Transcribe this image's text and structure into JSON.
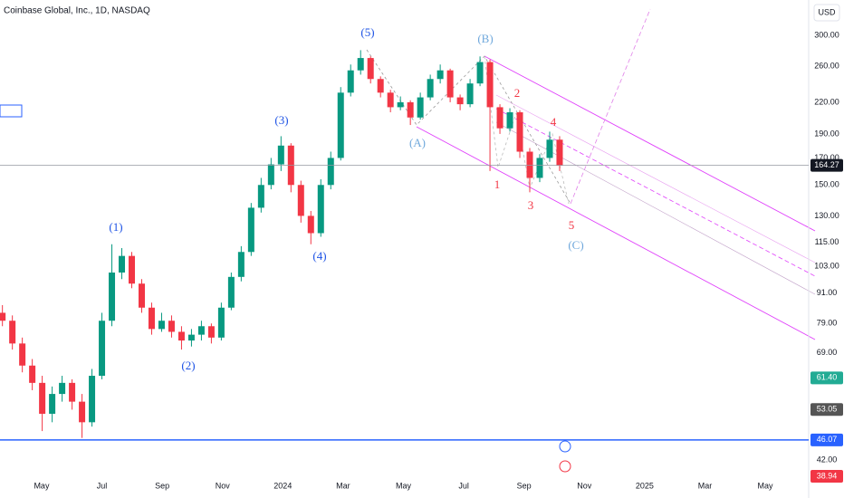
{
  "title": "Coinbase Global, Inc., 1D, NASDAQ",
  "currency_button": "USD",
  "chart_data": {
    "type": "candlestick",
    "log": true,
    "grid": false,
    "up_color": "#089981",
    "down_color": "#f23645",
    "x": [
      2.7,
      3.03,
      3.36,
      3.69,
      4.02,
      4.35,
      4.68,
      5.01,
      5.34,
      5.67,
      6.0,
      6.33,
      6.66,
      6.99,
      7.32,
      7.65,
      7.98,
      8.31,
      8.64,
      8.97,
      9.3,
      9.63,
      9.96,
      10.29,
      10.62,
      10.95,
      11.28,
      11.61,
      11.94,
      12.27,
      12.6,
      12.93,
      13.26,
      13.59,
      13.92,
      14.25,
      14.58,
      14.91,
      15.24,
      15.57,
      15.9,
      16.23,
      16.56,
      16.89,
      17.22,
      17.55,
      17.88,
      18.21,
      18.54,
      18.87,
      19.2,
      19.53,
      19.86,
      20.19,
      20.52,
      20.85,
      21.18
    ],
    "open": [
      83,
      80,
      72,
      65,
      60,
      52,
      57,
      60,
      55,
      50,
      62,
      80,
      100,
      108,
      95,
      85,
      77,
      80,
      76,
      73,
      75,
      78,
      74,
      85,
      98,
      110,
      135,
      150,
      165,
      180,
      150,
      130,
      120,
      150,
      170,
      230,
      255,
      270,
      245,
      230,
      215,
      220,
      205,
      225,
      245,
      255,
      225,
      218,
      240,
      265,
      215,
      195,
      210,
      175,
      155,
      170,
      185
    ],
    "high": [
      86,
      82,
      74,
      67,
      62,
      59,
      62,
      61,
      57,
      64,
      83,
      114,
      112,
      110,
      97,
      87,
      83,
      82,
      78,
      77,
      80,
      79,
      87,
      100,
      113,
      138,
      155,
      170,
      188,
      182,
      153,
      133,
      154,
      175,
      236,
      262,
      280,
      272,
      248,
      233,
      226,
      222,
      230,
      250,
      262,
      257,
      228,
      245,
      272,
      268,
      218,
      214,
      212,
      178,
      173,
      192,
      188
    ],
    "low": [
      78,
      70,
      63,
      58,
      48,
      50,
      55,
      53,
      46.5,
      49,
      61,
      78,
      97,
      93,
      83,
      75,
      76,
      74,
      70,
      71,
      73,
      72,
      73,
      84,
      96,
      108,
      132,
      147,
      160,
      145,
      126,
      114,
      118,
      147,
      168,
      226,
      250,
      240,
      225,
      210,
      212,
      198,
      203,
      222,
      240,
      220,
      212,
      215,
      237,
      160,
      190,
      192,
      170,
      145,
      152,
      167,
      160
    ],
    "close": [
      80,
      72,
      65,
      60,
      52,
      57,
      60,
      55,
      50,
      62,
      80,
      100,
      108,
      95,
      85,
      77,
      80,
      76,
      73,
      75,
      78,
      74,
      85,
      98,
      110,
      135,
      150,
      165,
      180,
      150,
      130,
      120,
      150,
      170,
      230,
      255,
      270,
      245,
      230,
      215,
      220,
      205,
      225,
      245,
      255,
      225,
      218,
      240,
      265,
      215,
      195,
      210,
      175,
      155,
      170,
      185,
      164.27
    ],
    "xlim": [
      2.62,
      29.44
    ],
    "xticks": [
      {
        "value": 4,
        "label": "May"
      },
      {
        "value": 6,
        "label": "Jul"
      },
      {
        "value": 8,
        "label": "Sep"
      },
      {
        "value": 10,
        "label": "Nov"
      },
      {
        "value": 12,
        "label": "2024"
      },
      {
        "value": 14,
        "label": "Mar"
      },
      {
        "value": 16,
        "label": "May"
      },
      {
        "value": 18,
        "label": "Jul"
      },
      {
        "value": 20,
        "label": "Sep"
      },
      {
        "value": 22,
        "label": "Nov"
      },
      {
        "value": 24,
        "label": "2025"
      },
      {
        "value": 26,
        "label": "Mar"
      },
      {
        "value": 28,
        "label": "May"
      }
    ],
    "ylim": [
      39.1,
      353.2
    ],
    "yticks": [
      {
        "value": 300,
        "label": "300.00"
      },
      {
        "value": 260,
        "label": "260.00"
      },
      {
        "value": 220,
        "label": "220.00"
      },
      {
        "value": 190,
        "label": "190.00"
      },
      {
        "value": 170,
        "label": "170.00"
      },
      {
        "value": 150,
        "label": "150.00"
      },
      {
        "value": 130,
        "label": "130.00"
      },
      {
        "value": 115,
        "label": "115.00"
      },
      {
        "value": 103,
        "label": "103.00"
      },
      {
        "value": 91,
        "label": "91.00"
      },
      {
        "value": 79,
        "label": "79.00"
      },
      {
        "value": 69,
        "label": "69.00"
      },
      {
        "value": 42,
        "label": "42.00"
      }
    ],
    "price_badges": [
      {
        "value": 164.27,
        "label": "164.27",
        "color": "#131722"
      },
      {
        "value": 61.4,
        "label": "61.40",
        "color": "#22ab94"
      },
      {
        "value": 53.05,
        "label": "53.05",
        "color": "#555555"
      },
      {
        "value": 46.07,
        "label": "46.07",
        "color": "#2962ff"
      },
      {
        "value": 38.94,
        "label": "38.94",
        "color": "#f23645"
      }
    ],
    "annotations": [
      {
        "text": "(1)",
        "color": "#1e53e5"
      },
      {
        "text": "(2)",
        "color": "#1e53e5"
      },
      {
        "text": "(3)",
        "color": "#1e53e5"
      },
      {
        "text": "(4)",
        "color": "#1e53e5"
      },
      {
        "text": "(5)",
        "color": "#1e53e5"
      },
      {
        "text": "(A)",
        "color": "#6fa8dc"
      },
      {
        "text": "(B)",
        "color": "#6fa8dc"
      },
      {
        "text": "(C)",
        "color": "#6fa8dc"
      },
      {
        "text": "1",
        "color": "#f23645"
      },
      {
        "text": "2",
        "color": "#f23645"
      },
      {
        "text": "3",
        "color": "#f23645"
      },
      {
        "text": "4",
        "color": "#f23645"
      },
      {
        "text": "5",
        "color": "#f23645"
      }
    ]
  }
}
